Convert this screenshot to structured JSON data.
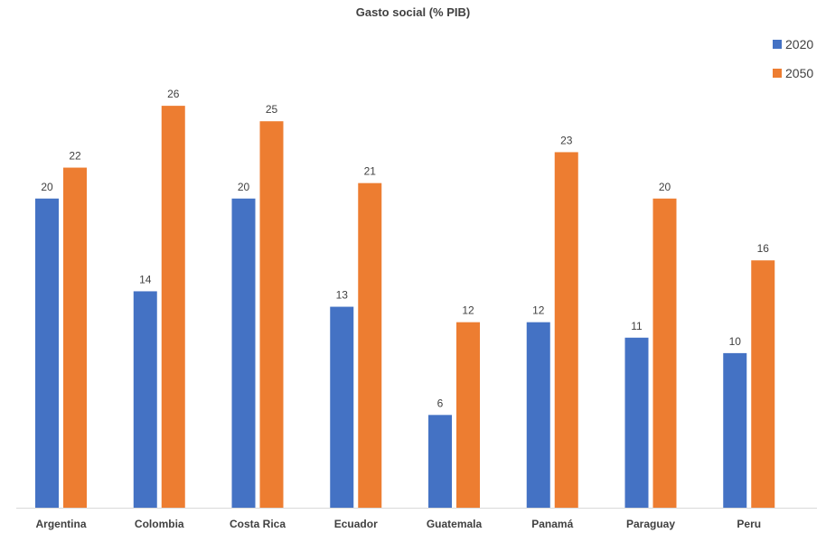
{
  "chart_data": {
    "type": "bar",
    "title": "Gasto social (% PIB)",
    "xlabel": "",
    "ylabel": "",
    "categories": [
      "Argentina",
      "Colombia",
      "Costa Rica",
      "Ecuador",
      "Guatemala",
      "Panamá",
      "Paraguay",
      "Peru"
    ],
    "series": [
      {
        "name": "2020",
        "values": [
          20,
          14,
          20,
          13,
          6,
          12,
          11,
          10
        ],
        "color": "#4472C4"
      },
      {
        "name": "2050",
        "values": [
          22,
          26,
          25,
          21,
          12,
          23,
          20,
          16
        ],
        "color": "#ED7D31"
      }
    ],
    "ylim": [
      0,
      27
    ],
    "grid": false,
    "legend_position": "top-right"
  }
}
